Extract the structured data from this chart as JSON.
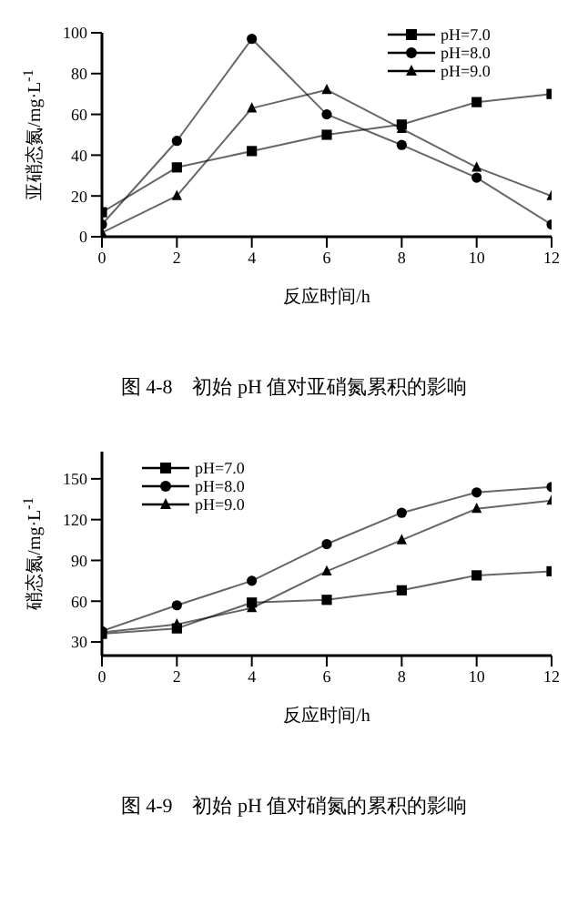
{
  "chart_data": [
    {
      "type": "line",
      "xlabel": "反应时间/h",
      "ylabel": "亚硝态氮/mg·L$^{-1}$",
      "x": [
        0,
        2,
        4,
        6,
        8,
        10,
        12
      ],
      "xlim": [
        0,
        12
      ],
      "xticks": [
        0,
        2,
        4,
        6,
        8,
        10,
        12
      ],
      "ylim": [
        0,
        100
      ],
      "yticks": [
        0,
        20,
        40,
        60,
        80,
        100
      ],
      "legend": "top right",
      "line_style": "solid",
      "series": [
        {
          "name": "pH=7.0",
          "color": "#000000",
          "marker": "square",
          "values": [
            12,
            34,
            42,
            50,
            55,
            66,
            70
          ]
        },
        {
          "name": "pH=8.0",
          "color": "#000000",
          "marker": "circle",
          "values": [
            6,
            47,
            97,
            60,
            45,
            29,
            6
          ]
        },
        {
          "name": "pH=9.0",
          "color": "#000000",
          "marker": "triangle",
          "values": [
            2,
            20,
            63,
            72,
            53,
            34,
            20
          ]
        }
      ],
      "annotations": [
        "图 4-8　初始 pH 值对亚硝氮累积的影响"
      ]
    },
    {
      "type": "line",
      "xlabel": "反应时间/h",
      "ylabel": "硝态氮/mg·L$^{-1}$",
      "x": [
        0,
        2,
        4,
        6,
        8,
        10,
        12
      ],
      "xlim": [
        0,
        12
      ],
      "xticks": [
        0,
        2,
        4,
        6,
        8,
        10,
        12
      ],
      "ylim": [
        20,
        170
      ],
      "yticks": [
        30,
        60,
        90,
        120,
        150
      ],
      "legend": "top left",
      "line_style": "solid",
      "series": [
        {
          "name": "pH=7.0",
          "color": "#000000",
          "marker": "square",
          "values": [
            36,
            40,
            59,
            61,
            68,
            79,
            82
          ]
        },
        {
          "name": "pH=8.0",
          "color": "#000000",
          "marker": "circle",
          "values": [
            38,
            57,
            75,
            102,
            125,
            140,
            144
          ]
        },
        {
          "name": "pH=9.0",
          "color": "#000000",
          "marker": "triangle",
          "values": [
            37,
            43,
            55,
            82,
            105,
            128,
            134
          ]
        }
      ],
      "annotations": [
        "图 4-9　初始 pH 值对硝氮的累积的影响"
      ]
    }
  ]
}
